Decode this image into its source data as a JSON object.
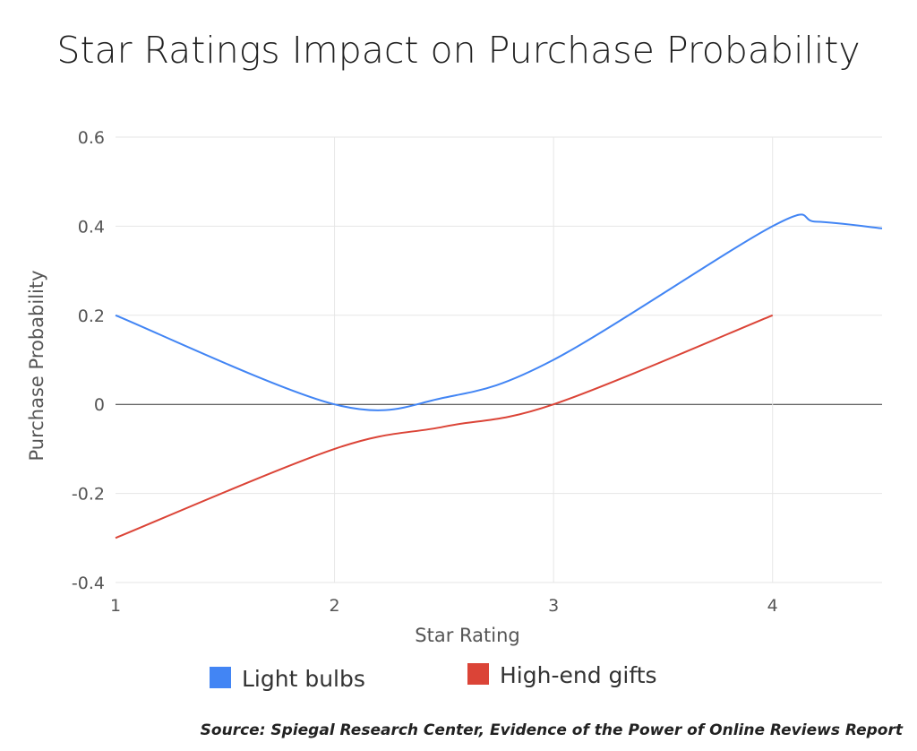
{
  "chart_data": {
    "type": "line",
    "title": "Star Ratings Impact on Purchase Probability",
    "xlabel": "Star Rating",
    "ylabel": "Purchase Probability",
    "xlim": [
      1,
      4.5
    ],
    "ylim": [
      -0.4,
      0.6
    ],
    "x_ticks": [
      1,
      2,
      3,
      4
    ],
    "x_tick_labels": [
      "1",
      "2",
      "3",
      "4"
    ],
    "y_ticks": [
      -0.4,
      -0.2,
      0,
      0.2,
      0.4,
      0.6
    ],
    "y_tick_labels": [
      "-0.4",
      "-0.2",
      "0",
      "0.2",
      "0.4",
      "0.6"
    ],
    "grid": true,
    "legend_position": "bottom",
    "series": [
      {
        "name": "Light bulbs",
        "color": "#4285f4",
        "points": [
          [
            1,
            0.2
          ],
          [
            2,
            0
          ],
          [
            2.5,
            0.015
          ],
          [
            3,
            0.1
          ],
          [
            4,
            0.4
          ],
          [
            4.2,
            0.41
          ],
          [
            4.5,
            0.395
          ]
        ]
      },
      {
        "name": "High-end gifts",
        "color": "#db4437",
        "points": [
          [
            1,
            -0.3
          ],
          [
            2,
            -0.1
          ],
          [
            2.5,
            -0.05
          ],
          [
            3,
            0
          ],
          [
            4,
            0.2
          ]
        ]
      }
    ],
    "source": "Source: Spiegal Research Center, Evidence of the Power of Online Reviews Report"
  }
}
